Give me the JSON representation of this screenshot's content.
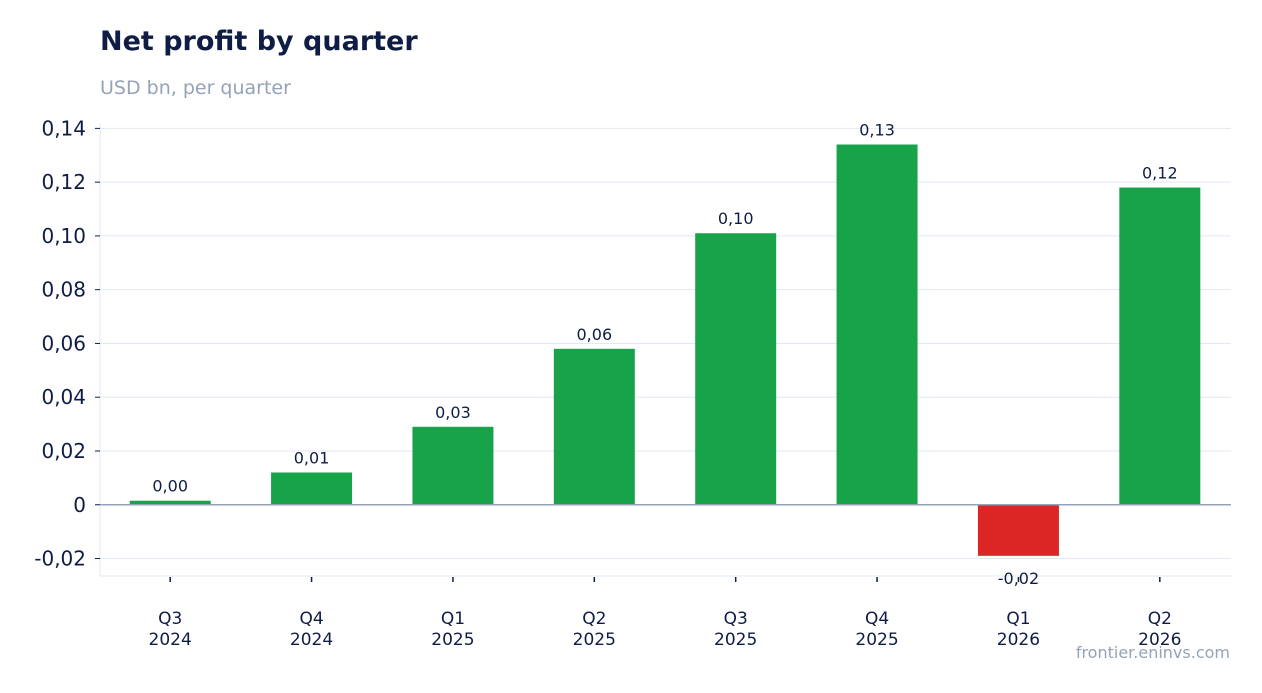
{
  "header": {
    "title": "Net profit by quarter",
    "subtitle": "USD bn, per quarter"
  },
  "footer": {
    "source": "frontier.eninvs.com"
  },
  "colors": {
    "positive": "#18a34a",
    "negative": "#dc2626",
    "grid": "#e2e8f0",
    "zero_line": "#94a3b8",
    "text": "#0f1d44"
  },
  "chart_data": {
    "type": "bar",
    "title": "Net profit by quarter",
    "subtitle": "USD bn, per quarter",
    "categories": [
      [
        "Q3",
        "2024"
      ],
      [
        "Q4",
        "2024"
      ],
      [
        "Q1",
        "2025"
      ],
      [
        "Q2",
        "2025"
      ],
      [
        "Q3",
        "2025"
      ],
      [
        "Q4",
        "2025"
      ],
      [
        "Q1",
        "2026"
      ],
      [
        "Q2",
        "2026"
      ]
    ],
    "values": [
      0.0015,
      0.012,
      0.029,
      0.058,
      0.101,
      0.134,
      -0.019,
      0.118
    ],
    "data_labels": [
      "0,00",
      "0,01",
      "0,03",
      "0,06",
      "0,10",
      "0,13",
      "-0,02",
      "0,12"
    ],
    "yticks": [
      -0.02,
      0,
      0.02,
      0.04,
      0.06,
      0.08,
      0.1,
      0.12,
      0.14
    ],
    "ytick_labels": [
      "-0,02",
      "0",
      "0,02",
      "0,04",
      "0,06",
      "0,08",
      "0,10",
      "0,12",
      "0,14"
    ],
    "ylim": [
      -0.0265,
      0.142
    ],
    "grid": true,
    "legend": "none"
  }
}
